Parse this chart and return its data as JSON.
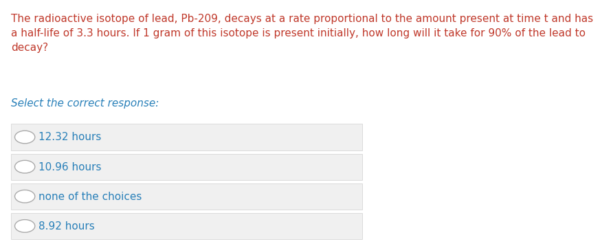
{
  "question_text": "The radioactive isotope of lead, Pb-209, decays at a rate proportional to the amount present at time t and has\na half-life of 3.3 hours. If 1 gram of this isotope is present initially, how long will it take for 90% of the lead to\ndecay?",
  "question_color": "#c0392b",
  "prompt_text": "Select the correct response:",
  "prompt_color": "#2980b9",
  "choices": [
    "12.32 hours",
    "10.96 hours",
    "none of the choices",
    "8.92 hours"
  ],
  "choice_color": "#2980b9",
  "choice_bg_color": "#f0f0f0",
  "choice_border_color": "#d0d0d0",
  "background_color": "#ffffff",
  "radio_edge_color": "#aaaaaa",
  "radio_face_color": "#ffffff",
  "choice_fontsize": 11,
  "question_fontsize": 11,
  "prompt_fontsize": 11
}
